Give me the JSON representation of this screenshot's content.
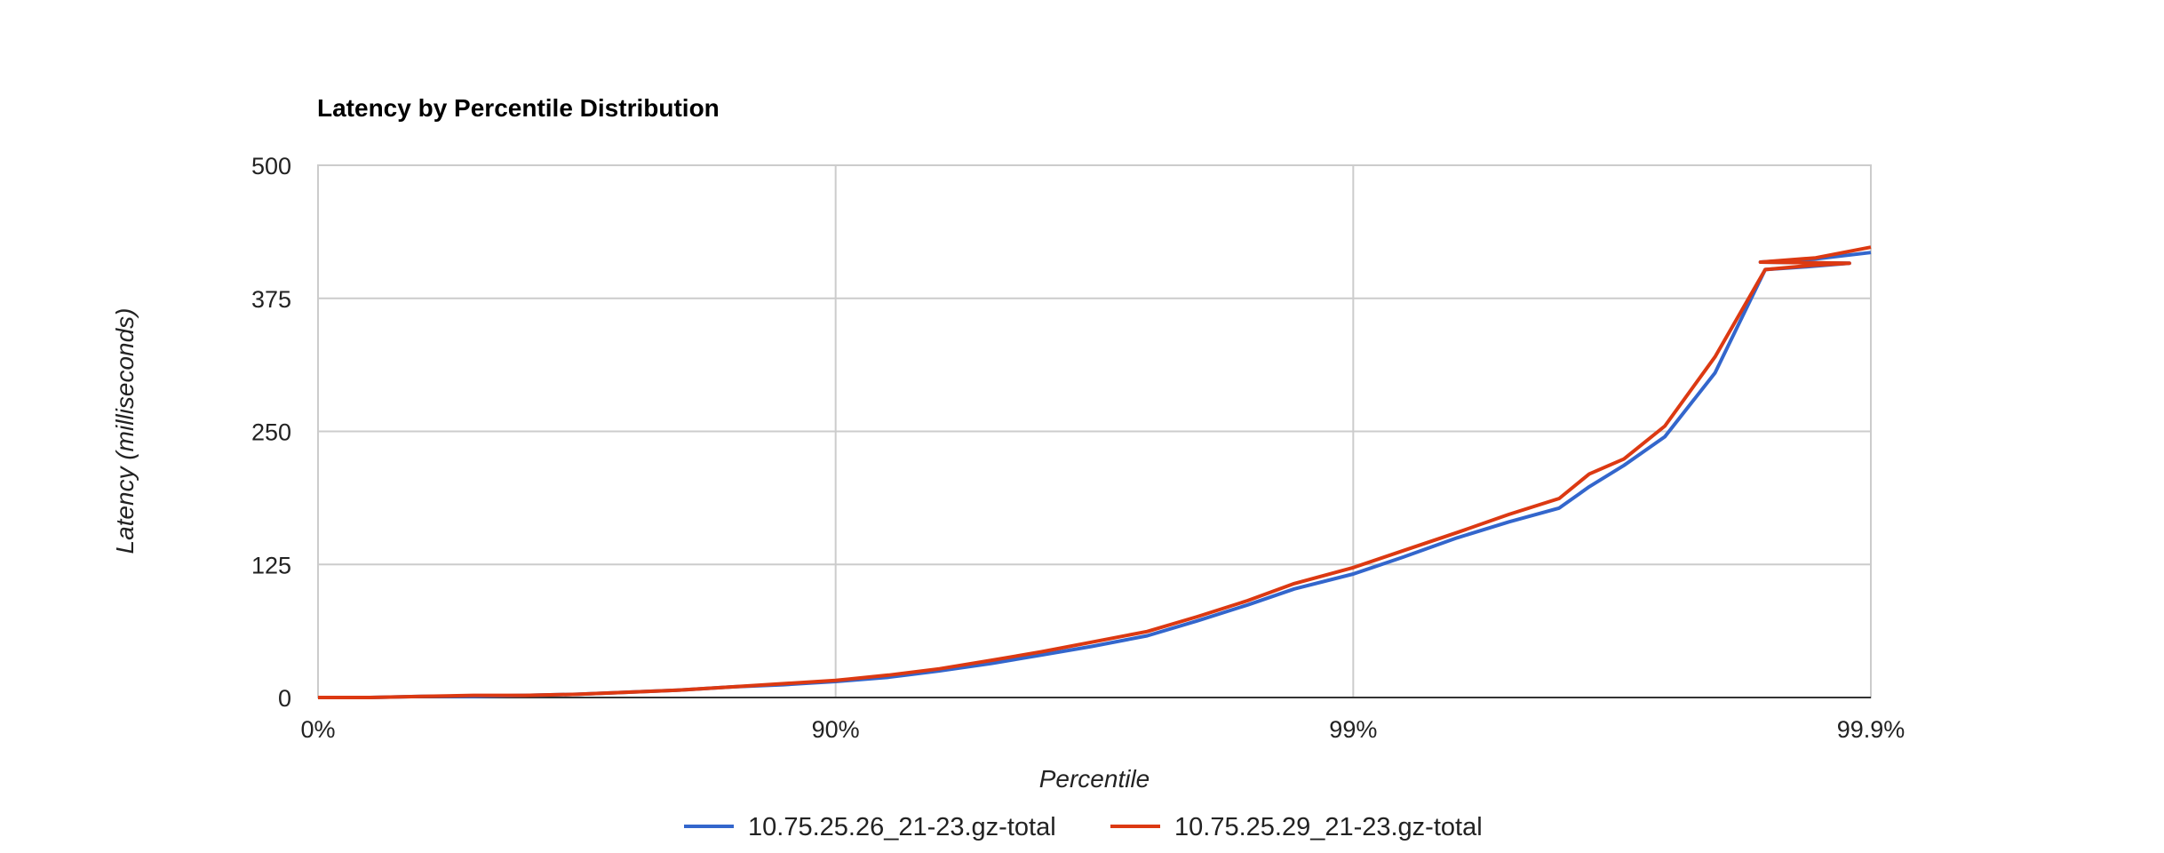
{
  "chart_data": {
    "type": "line",
    "title": "Latency by Percentile Distribution",
    "xlabel": "Percentile",
    "ylabel": "Latency (milliseconds)",
    "x_scale": "log-percentile",
    "x_ticks": [
      "0%",
      "90%",
      "99%",
      "99.9%"
    ],
    "y_ticks": [
      "0",
      "125",
      "250",
      "375",
      "500"
    ],
    "ylim": [
      0,
      500
    ],
    "grid": true,
    "legend": "bottom",
    "series": [
      {
        "name": "10.75.25.26_21-23.gz-total",
        "color": "#3366cc",
        "points": [
          [
            0.0,
            0
          ],
          [
            20.6,
            0
          ],
          [
            36.9,
            1
          ],
          [
            49.9,
            1
          ],
          [
            60.2,
            2
          ],
          [
            68.4,
            3
          ],
          [
            74.9,
            5
          ],
          [
            80.0,
            7
          ],
          [
            84.2,
            10
          ],
          [
            87.4,
            12
          ],
          [
            90.0,
            15
          ],
          [
            92.1,
            19
          ],
          [
            93.7,
            25
          ],
          [
            95.0,
            32
          ],
          [
            96.0,
            40
          ],
          [
            96.8,
            48
          ],
          [
            97.5,
            58
          ],
          [
            98.0,
            72
          ],
          [
            98.4,
            87
          ],
          [
            98.7,
            102
          ],
          [
            99.0,
            116
          ],
          [
            99.2,
            132
          ],
          [
            99.37,
            150
          ],
          [
            99.5,
            165
          ],
          [
            99.6,
            178
          ],
          [
            99.65,
            198
          ],
          [
            99.7,
            218
          ],
          [
            99.75,
            245
          ],
          [
            99.8,
            305
          ],
          [
            99.84,
            402
          ],
          [
            99.87,
            405
          ],
          [
            99.89,
            408
          ],
          [
            99.9,
            409
          ],
          [
            99.9,
            412
          ],
          [
            99.9,
            418
          ]
        ]
      },
      {
        "name": "10.75.25.29_21-23.gz-total",
        "color": "#dc3912",
        "points": [
          [
            0.0,
            0
          ],
          [
            20.6,
            0
          ],
          [
            36.9,
            1
          ],
          [
            49.9,
            2
          ],
          [
            60.2,
            2
          ],
          [
            68.4,
            3
          ],
          [
            74.9,
            5
          ],
          [
            80.0,
            7
          ],
          [
            84.2,
            10
          ],
          [
            87.4,
            13
          ],
          [
            90.0,
            16
          ],
          [
            92.1,
            21
          ],
          [
            93.7,
            27
          ],
          [
            95.0,
            35
          ],
          [
            96.0,
            43
          ],
          [
            96.8,
            52
          ],
          [
            97.5,
            62
          ],
          [
            98.0,
            76
          ],
          [
            98.4,
            91
          ],
          [
            98.7,
            107
          ],
          [
            99.0,
            122
          ],
          [
            99.2,
            138
          ],
          [
            99.37,
            155
          ],
          [
            99.5,
            172
          ],
          [
            99.6,
            187
          ],
          [
            99.65,
            210
          ],
          [
            99.7,
            224
          ],
          [
            99.75,
            255
          ],
          [
            99.8,
            320
          ],
          [
            99.84,
            402
          ],
          [
            99.87,
            406
          ],
          [
            99.89,
            408
          ],
          [
            99.9,
            409
          ],
          [
            99.9,
            413
          ],
          [
            99.9,
            423
          ]
        ]
      }
    ]
  }
}
